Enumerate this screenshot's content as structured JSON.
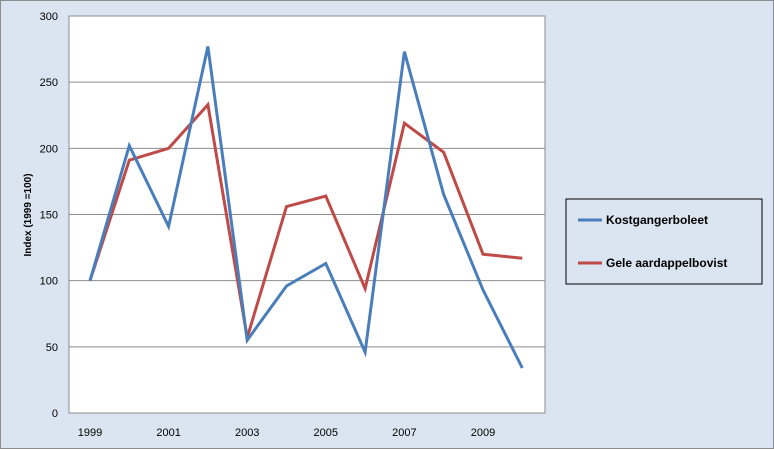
{
  "chart_data": {
    "type": "line",
    "x": [
      1999,
      2000,
      2001,
      2002,
      2003,
      2004,
      2005,
      2006,
      2007,
      2008,
      2009,
      2010
    ],
    "x_tick_labels": [
      "1999",
      "2001",
      "2003",
      "2005",
      "2007",
      "2009"
    ],
    "ylabel": "Index (1999 =100)",
    "ylim": [
      0,
      300
    ],
    "y_ticks": [
      0,
      50,
      100,
      150,
      200,
      250,
      300
    ],
    "grid": "horizontal",
    "legend_position": "right",
    "series": [
      {
        "name": "Kostgangerboleet",
        "color": "#4a7ebb",
        "values": [
          100,
          202,
          141,
          277,
          55,
          96,
          113,
          46,
          273,
          165,
          93,
          34
        ]
      },
      {
        "name": "Gele aardappelbovist",
        "color": "#be4b48",
        "values": [
          100,
          191,
          200,
          233,
          57,
          156,
          164,
          94,
          219,
          197,
          120,
          117
        ]
      }
    ]
  }
}
